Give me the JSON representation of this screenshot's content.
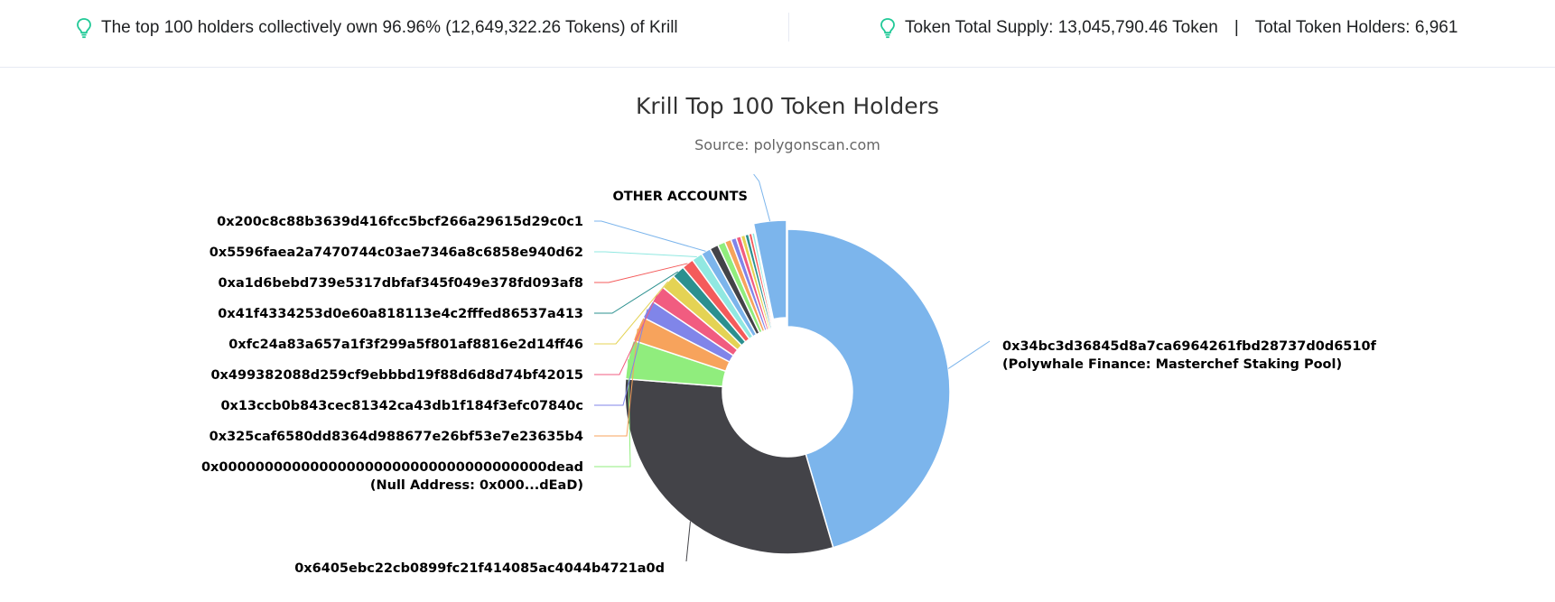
{
  "summary": {
    "top_holders_text": "The top 100 holders collectively own 96.96% (12,649,322.26 Tokens) of Krill",
    "supply_text": "Token Total Supply: 13,045,790.46 Token",
    "separator": "|",
    "holders_text": "Total Token Holders: 6,961",
    "icon": "lightbulb-icon",
    "icon_color": "#20c997"
  },
  "chart_data": {
    "type": "pie",
    "variant": "donut",
    "title": "Krill Top 100 Token Holders",
    "subtitle": "Source: polygonscan.com",
    "start_angle_deg": 0,
    "slices": [
      {
        "label": "0x34bc3d36845d8a7ca6964261fbd28737d0d6510f",
        "sublabel": "(Polywhale Finance: Masterchef Staking Pool)",
        "value": 42.5,
        "color": "#7cb5ec",
        "label_side": "right"
      },
      {
        "label": "0x6405ebc22cb0899fc21f414085ac4044b4721a0d",
        "value": 28.8,
        "color": "#434348",
        "label_side": "left"
      },
      {
        "label": "0x000000000000000000000000000000000000dead",
        "sublabel": "(Null Address: 0x000...dEaD)",
        "value": 3.6,
        "color": "#90ed7d",
        "label_side": "left"
      },
      {
        "label": "0x325caf6580dd8364d988677e26bf53e7e23635b4",
        "value": 2.3,
        "color": "#f7a35c",
        "label_side": "left"
      },
      {
        "label": "0x13ccb0b843cec81342ca43db1f184f3efc07840c",
        "value": 1.7,
        "color": "#8085e9",
        "label_side": "left"
      },
      {
        "label": "0x499382088d259cf9ebbbd19f88d6d8d74bf42015",
        "value": 1.6,
        "color": "#f15c80",
        "label_side": "left"
      },
      {
        "label": "0xfc24a83a657a1f3f299a5f801af8816e2d14ff46",
        "value": 1.4,
        "color": "#e4d354",
        "label_side": "left"
      },
      {
        "label": "0x41f4334253d0e60a818113e4c2fffed86537a413",
        "value": 1.2,
        "color": "#2b908f",
        "label_side": "left"
      },
      {
        "label": "0xa1d6bebd739e5317dbfaf345f049e378fd093af8",
        "value": 1.1,
        "color": "#f45b5b",
        "label_side": "left"
      },
      {
        "label": "0x5596faea2a7470744c03ae7346a8c6858e940d62",
        "value": 1.0,
        "color": "#91e8e1",
        "label_side": "left"
      },
      {
        "label": "0x200c8c88b3639d416fcc5bcf266a29615d29c0c1",
        "value": 0.9,
        "color": "#7cb5ec",
        "label_side": "left"
      },
      {
        "label": "",
        "value": 0.8,
        "color": "#434348"
      },
      {
        "label": "",
        "value": 0.7,
        "color": "#90ed7d"
      },
      {
        "label": "",
        "value": 0.6,
        "color": "#f7a35c"
      },
      {
        "label": "",
        "value": 0.5,
        "color": "#8085e9"
      },
      {
        "label": "",
        "value": 0.45,
        "color": "#f15c80"
      },
      {
        "label": "",
        "value": 0.4,
        "color": "#e4d354"
      },
      {
        "label": "",
        "value": 0.35,
        "color": "#2b908f"
      },
      {
        "label": "",
        "value": 0.3,
        "color": "#f45b5b"
      },
      {
        "label": "",
        "value": 0.25,
        "color": "#91e8e1"
      },
      {
        "label": "OTHER ACCOUNTS",
        "value": 3.04,
        "color": "#7cb5ec",
        "label_side": "top",
        "exploded": true
      }
    ]
  }
}
